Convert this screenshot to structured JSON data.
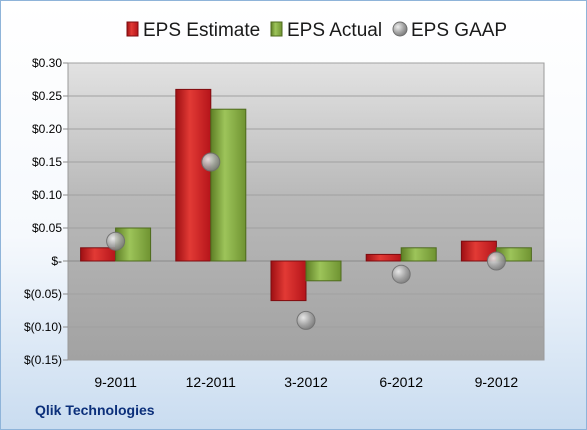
{
  "chart_data": {
    "type": "bar",
    "categories": [
      "9-2011",
      "12-2011",
      "3-2012",
      "6-2012",
      "9-2012"
    ],
    "series": [
      {
        "name": "EPS Estimate",
        "kind": "bar",
        "color": "#c8171d",
        "values": [
          0.02,
          0.26,
          -0.06,
          0.01,
          0.03
        ]
      },
      {
        "name": "EPS Actual",
        "kind": "bar",
        "color": "#7ea33a",
        "values": [
          0.05,
          0.23,
          -0.03,
          0.02,
          0.02
        ]
      },
      {
        "name": "EPS GAAP",
        "kind": "scatter",
        "color": "#a9a9a9",
        "values": [
          0.03,
          0.15,
          -0.09,
          -0.02,
          0.0
        ]
      }
    ],
    "ylim": [
      -0.15,
      0.3
    ],
    "yticks": [
      0.3,
      0.25,
      0.2,
      0.15,
      0.1,
      0.05,
      0,
      -0.05,
      -0.1,
      -0.15
    ],
    "ytick_labels": [
      "$0.30",
      "$0.25",
      "$0.20",
      "$0.15",
      "$0.10",
      "$0.05",
      "$-",
      "$(0.05)",
      "$(0.10)",
      "$(0.15)"
    ],
    "legend_position": "top",
    "grid": true
  },
  "footer": {
    "company": "Qlik Technologies"
  }
}
